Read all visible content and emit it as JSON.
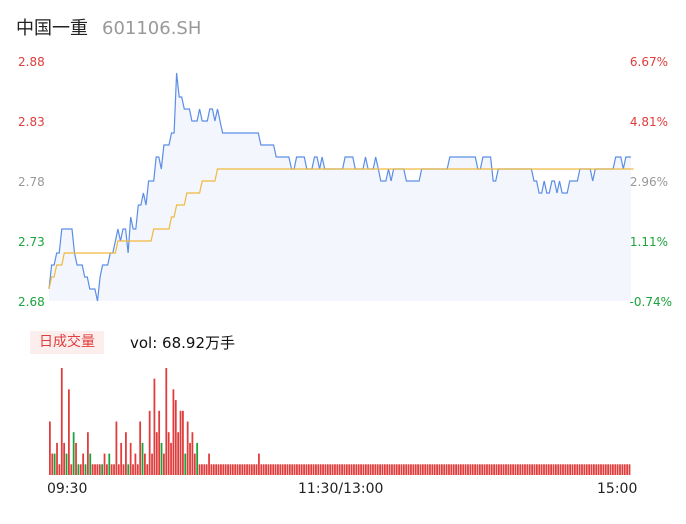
{
  "header": {
    "stock_name": "中国一重",
    "stock_code": "601106.SH"
  },
  "volume_panel": {
    "tag_label": "日成交量",
    "summary": "vol: 68.92万手"
  },
  "colors": {
    "up": "#e03c3c",
    "down": "#1aa33b",
    "neutral": "#999999",
    "price_line": "#5b8ee6",
    "avg_line": "#f0b940",
    "area_fill": "#f3f6fd"
  },
  "chart_data": [
    {
      "type": "line",
      "yaxis_left": [
        "2.88",
        "2.83",
        "2.78",
        "2.73",
        "2.68"
      ],
      "yaxis_right": [
        "6.67%",
        "4.81%",
        "2.96%",
        "1.11%",
        "-0.74%"
      ],
      "ylim": [
        2.68,
        2.88
      ],
      "prev_close": 2.7,
      "x_ticks": [
        "09:30",
        "11:30/13:00",
        "15:00"
      ],
      "series": [
        {
          "values": [
            2.69,
            2.71,
            2.71,
            2.72,
            2.72,
            2.74,
            2.74,
            2.74,
            2.74,
            2.74,
            2.72,
            2.71,
            2.71,
            2.71,
            2.7,
            2.7,
            2.69,
            2.69,
            2.69,
            2.68,
            2.7,
            2.71,
            2.71,
            2.71,
            2.72,
            2.72,
            2.73,
            2.74,
            2.73,
            2.74,
            2.74,
            2.72,
            2.75,
            2.74,
            2.74,
            2.76,
            2.76,
            2.77,
            2.76,
            2.78,
            2.78,
            2.78,
            2.8,
            2.8,
            2.79,
            2.81,
            2.81,
            2.81,
            2.82,
            2.82,
            2.87,
            2.85,
            2.85,
            2.84,
            2.84,
            2.84,
            2.83,
            2.83,
            2.83,
            2.84,
            2.83,
            2.83,
            2.83,
            2.84,
            2.84,
            2.83,
            2.84,
            2.83,
            2.82,
            2.82,
            2.82,
            2.82,
            2.82,
            2.82,
            2.82,
            2.82,
            2.82,
            2.82,
            2.82,
            2.82,
            2.82,
            2.82,
            2.82,
            2.81,
            2.81,
            2.81,
            2.81,
            2.81,
            2.81,
            2.8,
            2.8,
            2.8,
            2.8,
            2.8,
            2.8,
            2.79,
            2.79,
            2.8,
            2.8,
            2.8,
            2.8,
            2.79,
            2.79,
            2.79,
            2.8,
            2.8,
            2.79,
            2.8,
            2.79,
            2.79,
            2.79,
            2.79,
            2.79,
            2.79,
            2.79,
            2.79,
            2.8,
            2.8,
            2.8,
            2.8,
            2.79,
            2.79,
            2.79,
            2.79,
            2.8,
            2.79,
            2.79,
            2.79,
            2.8,
            2.79,
            2.78,
            2.78,
            2.78,
            2.79,
            2.78,
            2.79,
            2.79,
            2.79,
            2.79,
            2.79,
            2.78,
            2.78,
            2.78,
            2.78,
            2.78,
            2.78,
            2.79,
            2.79,
            2.79,
            2.79,
            2.79,
            2.79,
            2.79,
            2.79,
            2.79,
            2.79,
            2.79,
            2.8,
            2.8,
            2.8,
            2.8,
            2.8,
            2.8,
            2.8,
            2.8,
            2.8,
            2.8,
            2.8,
            2.79,
            2.79,
            2.8,
            2.8,
            2.8,
            2.8,
            2.78,
            2.78,
            2.79,
            2.79,
            2.79,
            2.79,
            2.79,
            2.79,
            2.79,
            2.79,
            2.79,
            2.79,
            2.79,
            2.79,
            2.79,
            2.79,
            2.78,
            2.78,
            2.77,
            2.77,
            2.78,
            2.77,
            2.77,
            2.78,
            2.78,
            2.77,
            2.78,
            2.77,
            2.77,
            2.77,
            2.78,
            2.78,
            2.78,
            2.78,
            2.79,
            2.79,
            2.79,
            2.79,
            2.79,
            2.78,
            2.79,
            2.79,
            2.79,
            2.79,
            2.79,
            2.79,
            2.79,
            2.79,
            2.8,
            2.8,
            2.8,
            2.79,
            2.8,
            2.8,
            2.8
          ]
        },
        {
          "values": [
            2.69,
            2.7,
            2.7,
            2.71,
            2.71,
            2.71,
            2.72,
            2.72,
            2.72,
            2.72,
            2.72,
            2.72,
            2.72,
            2.72,
            2.72,
            2.72,
            2.72,
            2.72,
            2.72,
            2.72,
            2.72,
            2.72,
            2.72,
            2.72,
            2.72,
            2.72,
            2.72,
            2.73,
            2.73,
            2.73,
            2.73,
            2.73,
            2.73,
            2.73,
            2.73,
            2.73,
            2.73,
            2.73,
            2.73,
            2.73,
            2.73,
            2.74,
            2.74,
            2.74,
            2.74,
            2.74,
            2.74,
            2.74,
            2.75,
            2.75,
            2.76,
            2.76,
            2.76,
            2.76,
            2.77,
            2.77,
            2.77,
            2.77,
            2.77,
            2.77,
            2.78,
            2.78,
            2.78,
            2.78,
            2.78,
            2.78,
            2.79,
            2.79,
            2.79,
            2.79,
            2.79,
            2.79,
            2.79,
            2.79,
            2.79,
            2.79,
            2.79,
            2.79,
            2.79,
            2.79,
            2.79,
            2.79,
            2.79,
            2.79,
            2.79,
            2.79,
            2.79,
            2.79,
            2.79,
            2.79,
            2.79,
            2.79,
            2.79,
            2.79,
            2.79,
            2.79,
            2.79,
            2.79,
            2.79,
            2.79,
            2.79,
            2.79,
            2.79,
            2.79,
            2.79,
            2.79,
            2.79,
            2.79,
            2.79,
            2.79,
            2.79,
            2.79,
            2.79,
            2.79,
            2.79,
            2.79,
            2.79,
            2.79,
            2.79,
            2.79,
            2.79,
            2.79,
            2.79,
            2.79,
            2.79,
            2.79,
            2.79,
            2.79,
            2.79,
            2.79,
            2.79,
            2.79,
            2.79,
            2.79,
            2.79,
            2.79,
            2.79,
            2.79,
            2.79,
            2.79,
            2.79,
            2.79,
            2.79,
            2.79,
            2.79,
            2.79,
            2.79,
            2.79,
            2.79,
            2.79,
            2.79,
            2.79,
            2.79,
            2.79,
            2.79,
            2.79,
            2.79,
            2.79,
            2.79,
            2.79,
            2.79,
            2.79,
            2.79,
            2.79,
            2.79,
            2.79,
            2.79,
            2.79,
            2.79,
            2.79,
            2.79,
            2.79,
            2.79,
            2.79,
            2.79,
            2.79,
            2.79,
            2.79,
            2.79,
            2.79,
            2.79,
            2.79,
            2.79,
            2.79,
            2.79,
            2.79,
            2.79,
            2.79,
            2.79,
            2.79,
            2.79,
            2.79,
            2.79,
            2.79,
            2.79,
            2.79,
            2.79,
            2.79,
            2.79,
            2.79,
            2.79,
            2.79,
            2.79,
            2.79,
            2.79,
            2.79,
            2.79,
            2.79,
            2.79,
            2.79,
            2.79,
            2.79,
            2.79,
            2.79,
            2.79,
            2.79,
            2.79,
            2.79,
            2.79,
            2.79,
            2.79,
            2.79,
            2.79,
            2.79,
            2.79,
            2.79,
            2.79,
            2.79,
            2.79,
            2.79
          ]
        }
      ]
    },
    {
      "type": "bar",
      "values": [
        5,
        2,
        2,
        3,
        1,
        10,
        3,
        2,
        8,
        1,
        4,
        3,
        1,
        1,
        2,
        1,
        4,
        2,
        1,
        1,
        1,
        1,
        1,
        2,
        1,
        2,
        1,
        1,
        5,
        1,
        3,
        1,
        4,
        1,
        3,
        1,
        2,
        1,
        5,
        3,
        2,
        1,
        6,
        2,
        9,
        4,
        6,
        3,
        2,
        10,
        4,
        3,
        8,
        7,
        4,
        6,
        6,
        2,
        5,
        3,
        4,
        2,
        3,
        1,
        1,
        1,
        1,
        2,
        1,
        1,
        1,
        1,
        1,
        1,
        1,
        1,
        1,
        1,
        1,
        1,
        1,
        1,
        1,
        1,
        1,
        1,
        1,
        1,
        2,
        1,
        1,
        1,
        1,
        1,
        1,
        1,
        1,
        1,
        1,
        1,
        1,
        1,
        1,
        1,
        1,
        1,
        1,
        1,
        1,
        1,
        1,
        1,
        1,
        1,
        1,
        1,
        1,
        1,
        1,
        1,
        1,
        1,
        1,
        1,
        1,
        1,
        1,
        1,
        1,
        1,
        1,
        1,
        1,
        1,
        1,
        1,
        1,
        1,
        1,
        1,
        1,
        1,
        1,
        1,
        1,
        1,
        1,
        1,
        1,
        1,
        1,
        1,
        1,
        1,
        1,
        1,
        1,
        1,
        1,
        1,
        1,
        1,
        1,
        1,
        1,
        1,
        1,
        1,
        1,
        1,
        1,
        1,
        1,
        1,
        1,
        1,
        1,
        1,
        1,
        1,
        1,
        1,
        1,
        1,
        1,
        1,
        1,
        1,
        1,
        1,
        1,
        1,
        1,
        1,
        1,
        1,
        1,
        1,
        1,
        1,
        1,
        1,
        1,
        1,
        1,
        1,
        1,
        1,
        1,
        1,
        1,
        1,
        1,
        1,
        1,
        1,
        1,
        1,
        1,
        1,
        1,
        1,
        1,
        1,
        1,
        1,
        1,
        1,
        1,
        1,
        1,
        1,
        1,
        1,
        1,
        1,
        1,
        1,
        1,
        1,
        1,
        1,
        1,
        1,
        1
      ],
      "directions": [
        "u",
        "u",
        "d",
        "u",
        "u",
        "u",
        "u",
        "d",
        "u",
        "u",
        "d",
        "u",
        "d",
        "u",
        "u",
        "d",
        "u",
        "d",
        "u",
        "u",
        "u",
        "u",
        "d",
        "u",
        "u",
        "d",
        "u",
        "u",
        "u",
        "u",
        "u",
        "u",
        "u",
        "d",
        "u",
        "u",
        "u",
        "u",
        "u",
        "d",
        "u",
        "u",
        "u",
        "u",
        "u",
        "u",
        "u",
        "d",
        "u",
        "u",
        "u",
        "u",
        "u",
        "u",
        "u",
        "u",
        "u",
        "d",
        "u",
        "u",
        "u",
        "u",
        "d",
        "u",
        "u",
        "u",
        "u",
        "u",
        "u",
        "u",
        "u",
        "u",
        "u",
        "u",
        "u",
        "u",
        "u",
        "u",
        "u",
        "u",
        "u",
        "u",
        "u",
        "u",
        "u",
        "u",
        "u",
        "u",
        "u",
        "u",
        "u",
        "u",
        "u",
        "u",
        "u",
        "u",
        "u",
        "u",
        "u",
        "u",
        "u",
        "u",
        "u",
        "u",
        "u",
        "u",
        "u",
        "u",
        "u",
        "u",
        "u",
        "u",
        "u",
        "u",
        "u",
        "u",
        "u",
        "u",
        "u",
        "u",
        "u",
        "u",
        "u",
        "u",
        "u",
        "u",
        "u",
        "u",
        "u",
        "u",
        "u",
        "u",
        "u",
        "u",
        "u",
        "u",
        "u",
        "u",
        "u",
        "u",
        "u",
        "u",
        "u",
        "u",
        "u",
        "u",
        "u",
        "u",
        "u",
        "u",
        "u",
        "u",
        "u",
        "u",
        "u",
        "u",
        "u",
        "u",
        "u",
        "u",
        "u",
        "u",
        "u",
        "u",
        "u",
        "u",
        "u",
        "u",
        "u",
        "u",
        "u",
        "u",
        "u",
        "u",
        "u",
        "u",
        "u",
        "u",
        "u",
        "u",
        "u",
        "u",
        "u",
        "u",
        "u",
        "u",
        "u",
        "u",
        "u",
        "u",
        "u",
        "u",
        "u",
        "u",
        "u",
        "u",
        "u",
        "u",
        "u",
        "u",
        "u",
        "u",
        "u",
        "u",
        "u",
        "u",
        "u",
        "u",
        "u",
        "u",
        "u",
        "u",
        "u",
        "u",
        "u",
        "u",
        "u",
        "u",
        "u",
        "u",
        "u",
        "u",
        "u",
        "u",
        "u",
        "u",
        "u",
        "u",
        "u",
        "u",
        "u",
        "u",
        "u",
        "u",
        "u",
        "u",
        "u",
        "u",
        "u",
        "u",
        "u",
        "u",
        "u",
        "u",
        "u"
      ]
    }
  ]
}
